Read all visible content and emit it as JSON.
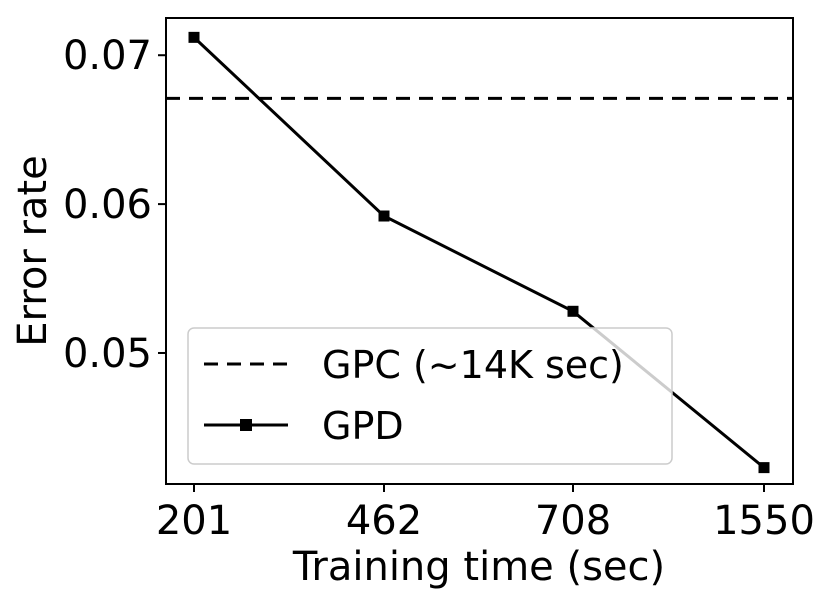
{
  "chart_data": {
    "type": "line",
    "title": "",
    "xlabel": "Training time (sec)",
    "ylabel": "Error rate",
    "categories": [
      "201",
      "462",
      "708",
      "1550"
    ],
    "yticks": [
      "0.05",
      "0.06",
      "0.07"
    ],
    "ylim": [
      0.0412,
      0.0725
    ],
    "grid": false,
    "legend_position": "lower-left",
    "series": [
      {
        "name": "GPD",
        "values": [
          0.0712,
          0.0592,
          0.0528,
          0.0423
        ],
        "style": "solid",
        "marker": "square",
        "color": "#000000"
      }
    ],
    "reference_lines": [
      {
        "name": "GPC (~14K sec)",
        "value": 0.0671,
        "style": "dashed",
        "color": "#000000"
      }
    ]
  }
}
